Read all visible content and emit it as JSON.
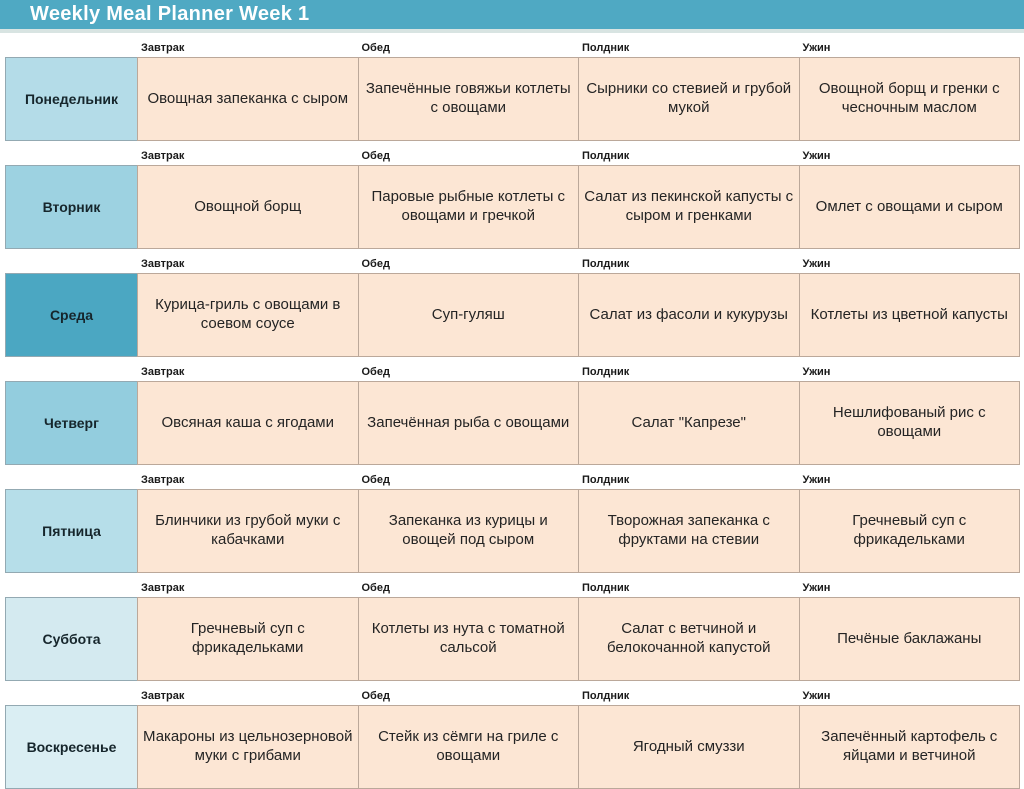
{
  "header": {
    "title": "Weekly Meal Planner Week 1"
  },
  "columns": [
    "Завтрак",
    "Обед",
    "Полдник",
    "Ужин"
  ],
  "days": [
    {
      "day": "Понедельник",
      "color": "#B4DCE8",
      "meals": [
        "Овощная запеканка с сыром",
        "Запечённые говяжьи котлеты с овощами",
        "Сырники со стевией и грубой мукой",
        "Овощной борщ и гренки с чесночным маслом"
      ]
    },
    {
      "day": "Вторник",
      "color": "#9DD2E1",
      "meals": [
        "Овощной борщ",
        "Паровые рыбные котлеты с овощами и гречкой",
        "Салат из пекинской капусты с сыром и гренками",
        "Омлет с овощами и сыром"
      ]
    },
    {
      "day": "Среда",
      "color": "#4BA7C2",
      "meals": [
        "Курица-гриль с овощами в соевом соусе",
        "Суп-гуляш",
        "Салат из фасоли и кукурузы",
        "Котлеты из цветной капусты"
      ]
    },
    {
      "day": "Четверг",
      "color": "#93CDDE",
      "meals": [
        "Овсяная каша с ягодами",
        "Запечённая рыба с овощами",
        "Салат \"Капрезе\"",
        "Нешлифованый рис с овощами"
      ]
    },
    {
      "day": "Пятница",
      "color": "#B6DEE9",
      "meals": [
        "Блинчики из грубой муки с кабачками",
        "Запеканка из курицы и овощей под сыром",
        "Творожная запеканка с фруктами на стевии",
        "Гречневый суп с фрикадельками"
      ]
    },
    {
      "day": "Суббота",
      "color": "#D4EAF0",
      "meals": [
        "Гречневый суп с фрикадельками",
        "Котлеты из нута с томатной сальсой",
        "Салат с ветчиной и белокочанной капустой",
        "Печёные баклажаны"
      ]
    },
    {
      "day": "Воскресенье",
      "color": "#DAEEF3",
      "meals": [
        "Макароны из цельнозерновой муки с грибами",
        "Стейк из сёмги на гриле с овощами",
        "Ягодный смуззи",
        "Запечённый картофель с яйцами и ветчиной"
      ]
    }
  ],
  "colors": {
    "header_bg": "#4FA9C3",
    "header_text": "#FFFFFF",
    "meal_cell_bg": "#FCE6D4",
    "meal_cell_border": "#BBA89A",
    "day_cell_border": "#93A9B2",
    "wednesday_accent": "#4BA7C2"
  }
}
